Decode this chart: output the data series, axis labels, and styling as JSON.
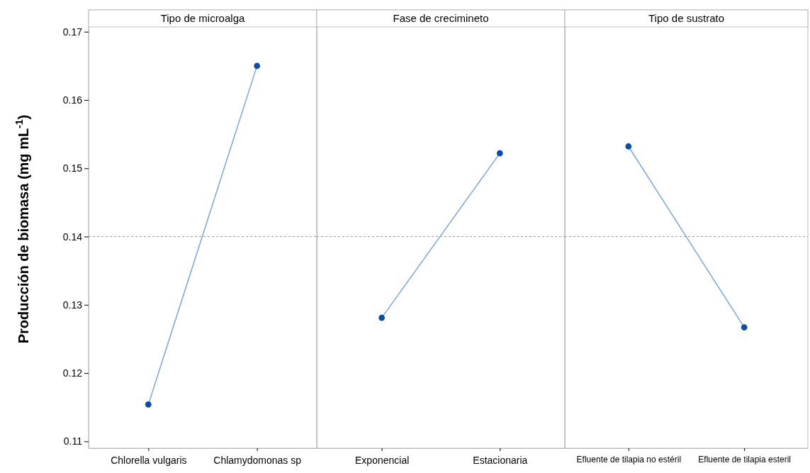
{
  "chart_data": [
    {
      "type": "line",
      "title": "Tipo de microalga",
      "ylabel": "Producción de biomasa (mg mL$^{-1}$)",
      "categories": [
        "Chlorella vulgaris",
        "Chlamydomonas sp"
      ],
      "series": [
        {
          "color": "#7aa6d6",
          "values": [
            0.1154,
            0.165
          ]
        }
      ],
      "marker": "circle",
      "ylim": [
        0.109,
        0.1707
      ],
      "yticks": [
        0.11,
        0.12,
        0.13,
        0.14,
        0.15,
        0.16,
        0.17
      ],
      "ref_lines": [
        {
          "axis": "y",
          "value": 0.14,
          "color": "#999999",
          "line_style": "dashed"
        }
      ]
    },
    {
      "type": "line",
      "title": "Fase de crecimineto",
      "categories": [
        "Exponencial",
        "Estacionaria"
      ],
      "series": [
        {
          "color": "#7aa6d6",
          "values": [
            0.1281,
            0.1522
          ]
        }
      ],
      "marker": "circle",
      "ylim": [
        0.109,
        0.1707
      ],
      "yticks": [
        0.11,
        0.12,
        0.13,
        0.14,
        0.15,
        0.16,
        0.17
      ],
      "tick_labels": "x",
      "ref_lines": [
        {
          "axis": "y",
          "value": 0.14,
          "color": "#999999",
          "line_style": "dashed"
        }
      ]
    },
    {
      "type": "line",
      "title": "Tipo de sustrato",
      "categories": [
        "Efluente de tilapia no estéril",
        "Efluente de tilapia esteril"
      ],
      "series": [
        {
          "color": "#7aa6d6",
          "values": [
            0.1532,
            0.1267
          ]
        }
      ],
      "marker": "circle",
      "ylim": [
        0.109,
        0.1707
      ],
      "yticks": [
        0.11,
        0.12,
        0.13,
        0.14,
        0.15,
        0.16,
        0.17
      ],
      "tick_labels": "x",
      "ref_lines": [
        {
          "axis": "y",
          "value": 0.14,
          "color": "#999999",
          "line_style": "dashed"
        }
      ]
    }
  ]
}
